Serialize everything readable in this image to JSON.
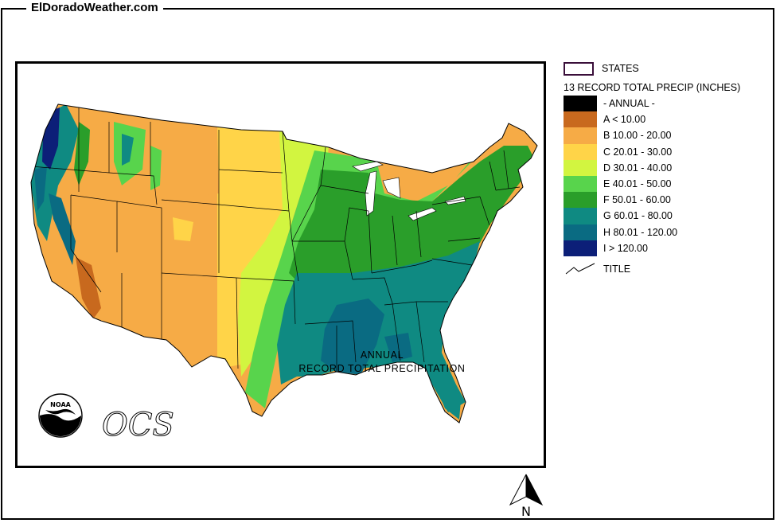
{
  "site": {
    "title": "ElDoradoWeather.com"
  },
  "map": {
    "caption_line1": "ANNUAL",
    "caption_line2": "RECORD TOTAL PRECIPITATION",
    "logos": {
      "noaa": "NOAA",
      "ocs": "OCS"
    },
    "north_label": "N"
  },
  "legend": {
    "states_label": "STATES",
    "subtitle": "13 RECORD TOTAL PRECIP (INCHES)",
    "title_label": "TITLE",
    "items": [
      {
        "label": "- ANNUAL -",
        "color": "#000000"
      },
      {
        "label": "A < 10.00",
        "color": "#c8691e"
      },
      {
        "label": "B 10.00 - 20.00",
        "color": "#f6ab46"
      },
      {
        "label": "C 20.01 - 30.00",
        "color": "#ffd448"
      },
      {
        "label": "D 30.01 - 40.00",
        "color": "#d2f540"
      },
      {
        "label": "E 40.01 - 50.00",
        "color": "#58d44c"
      },
      {
        "label": "F 50.01 - 60.00",
        "color": "#2a9e2a"
      },
      {
        "label": "G 60.01 - 80.00",
        "color": "#0f8a82"
      },
      {
        "label": "H 80.01 - 120.00",
        "color": "#0a6b82"
      },
      {
        "label": "I > 120.00",
        "color": "#0c1f78"
      }
    ]
  }
}
